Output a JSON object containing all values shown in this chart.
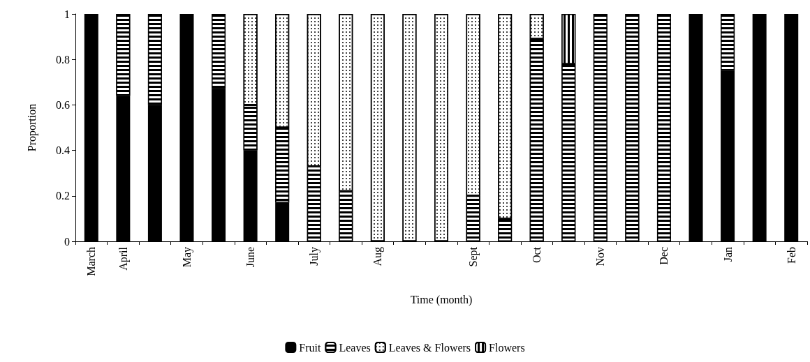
{
  "chart_data": {
    "type": "bar",
    "stacked": true,
    "xlabel": "Time (month)",
    "ylabel": "Proportion",
    "categories": [
      "March",
      "April",
      null,
      "May",
      null,
      "June",
      null,
      "July",
      null,
      "Aug",
      null,
      null,
      "Sept",
      null,
      "Oct",
      null,
      "Nov",
      null,
      "Dec",
      null,
      "Jan",
      null,
      "Feb"
    ],
    "series": [
      {
        "name": "Fruit",
        "color": "#000000",
        "values": [
          1,
          0.64,
          0.6,
          1,
          0.67,
          0.4,
          0.17,
          0,
          0,
          0,
          0,
          0,
          0,
          0,
          0,
          0,
          0,
          0,
          0,
          1,
          0.75,
          1,
          1
        ]
      },
      {
        "name": "Leaves",
        "color": "#000000",
        "values": [
          0,
          0.36,
          0.4,
          0,
          0.33,
          0.2,
          0.33,
          0.33,
          0.22,
          0,
          0,
          0,
          0.2,
          0.1,
          0.89,
          0.78,
          1,
          1,
          1,
          0,
          0.25,
          0,
          0
        ]
      },
      {
        "name": "Leaves & Flowers",
        "color": "#ffffff",
        "values": [
          0,
          0,
          0,
          0,
          0,
          0.4,
          0.5,
          0.67,
          0.78,
          1,
          1,
          1,
          0.8,
          0.9,
          0.11,
          0,
          0,
          0,
          0,
          0,
          0,
          0,
          0
        ]
      },
      {
        "name": "Flowers",
        "color": "#000000",
        "values": [
          0,
          0,
          0,
          0,
          0,
          0,
          0,
          0,
          0,
          0,
          0,
          0,
          0,
          0,
          0,
          0.22,
          0,
          0,
          0,
          0,
          0,
          0,
          0
        ]
      }
    ],
    "ylim": [
      0,
      1
    ],
    "yticks": [
      0,
      0.2,
      0.4,
      0.6,
      0.8,
      1
    ],
    "grid": false,
    "legend": "bottom"
  }
}
